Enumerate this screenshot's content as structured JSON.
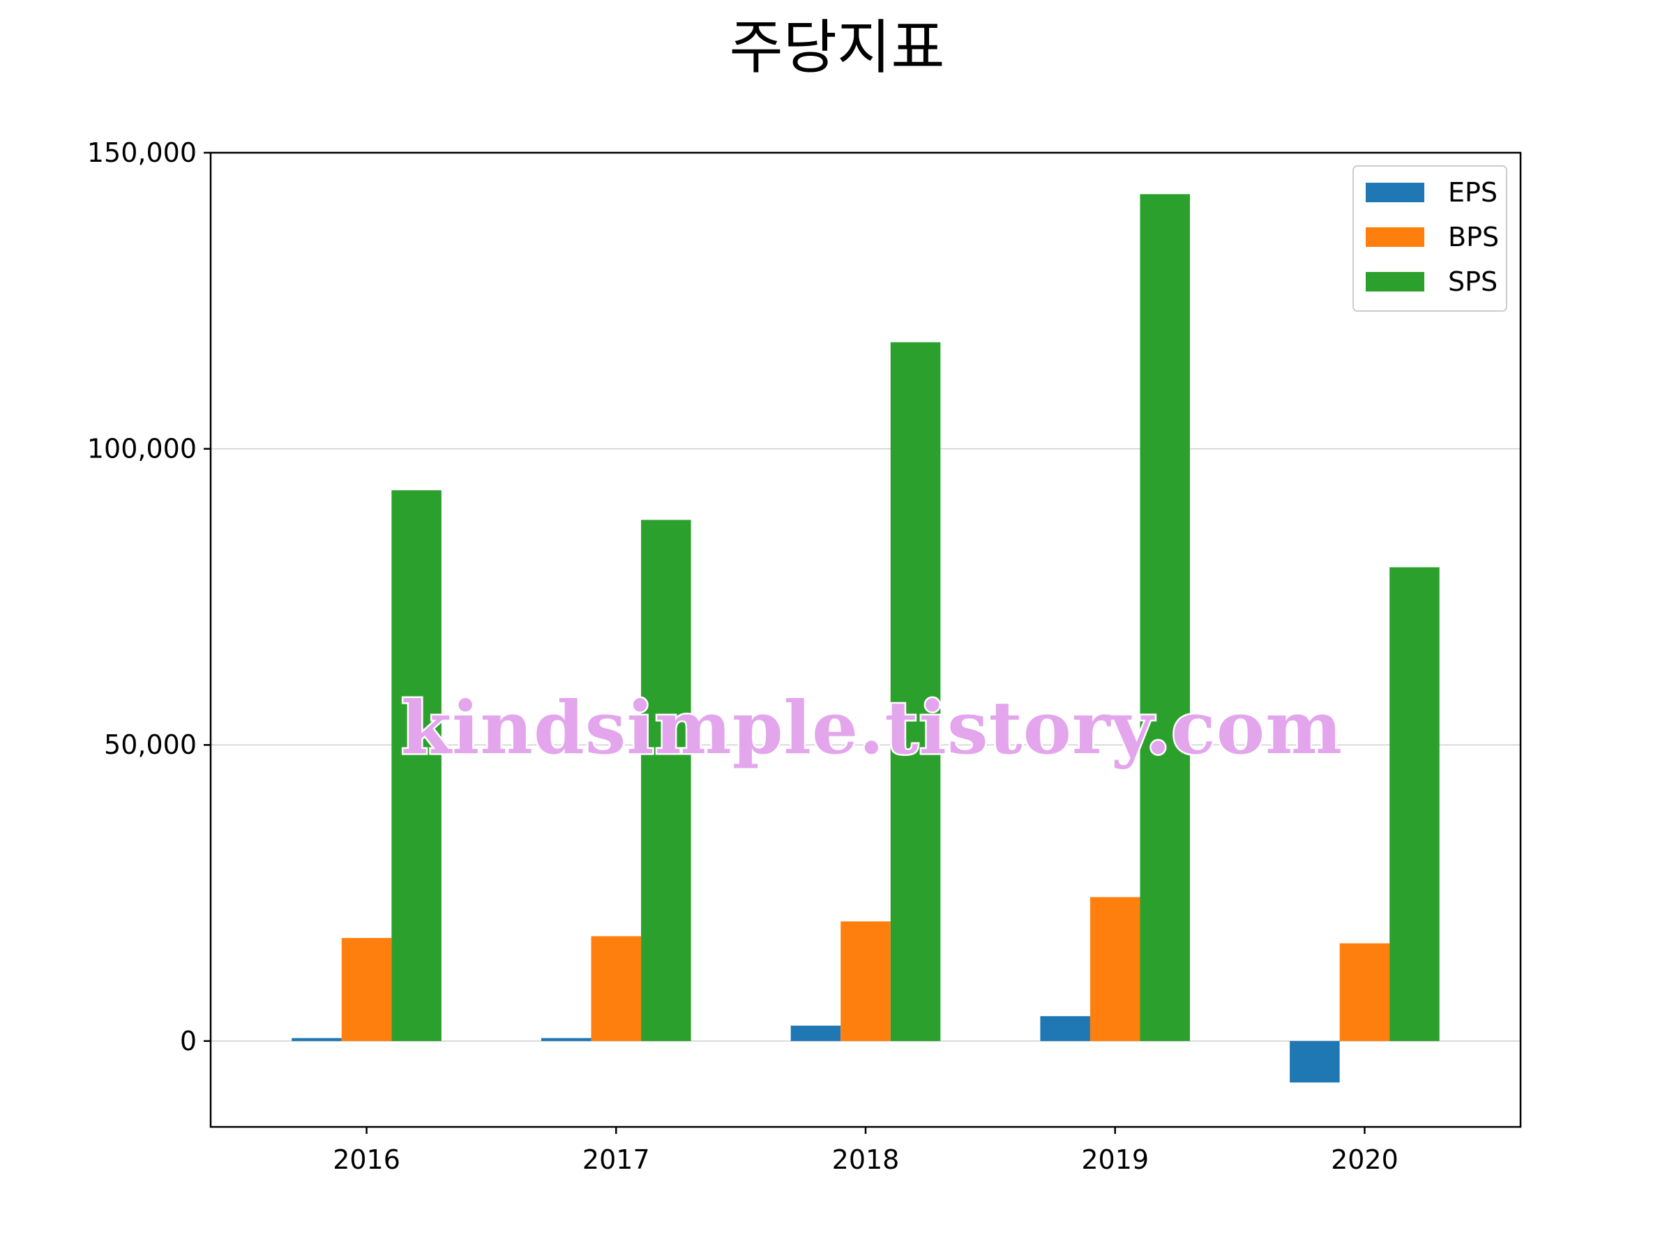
{
  "chart_data": {
    "type": "bar",
    "title": "주당지표",
    "xlabel": "",
    "ylabel": "",
    "categories": [
      "2016",
      "2017",
      "2018",
      "2019",
      "2020"
    ],
    "series": [
      {
        "name": "EPS",
        "color": "#1f77b4",
        "values": [
          500,
          500,
          2600,
          4200,
          -7000
        ]
      },
      {
        "name": "BPS",
        "color": "#ff7f0e",
        "values": [
          17400,
          17700,
          20200,
          24300,
          16500
        ]
      },
      {
        "name": "SPS",
        "color": "#2ca02c",
        "values": [
          93000,
          88000,
          118000,
          143000,
          80000
        ]
      }
    ],
    "ylim": [
      -14500,
      150000
    ],
    "yticks": [
      0,
      50000,
      100000,
      150000
    ],
    "ytick_labels": [
      "0",
      "50,000",
      "100,000",
      "150,000"
    ],
    "grid": "horizontal",
    "legend_position": "top-right"
  },
  "watermark": {
    "text": "kindsimple.tistory.com",
    "color": "#e3a6ec"
  }
}
